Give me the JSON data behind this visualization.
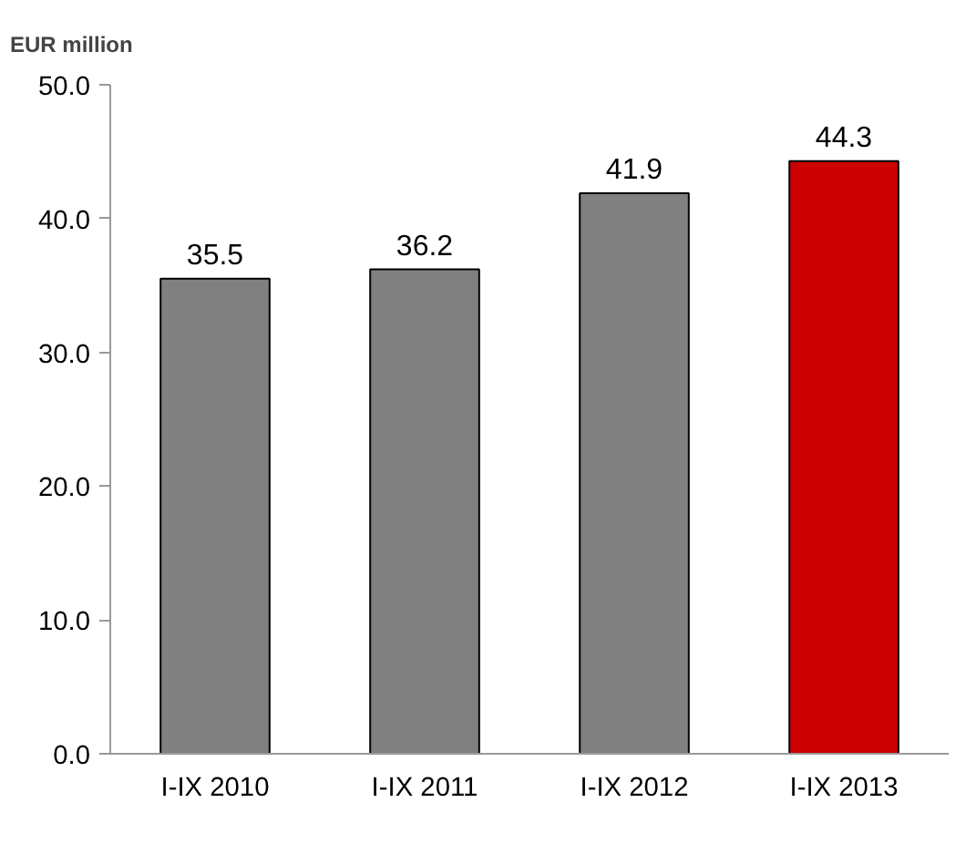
{
  "chart_data": {
    "type": "bar",
    "ylabel": "EUR million",
    "categories": [
      "I-IX 2010",
      "I-IX 2011",
      "I-IX 2012",
      "I-IX 2013"
    ],
    "values": [
      35.5,
      36.2,
      41.9,
      44.3
    ],
    "colors": [
      "#808080",
      "#808080",
      "#808080",
      "#cc0000"
    ],
    "ylim": [
      0,
      50
    ],
    "yticks": [
      {
        "value": 0,
        "label": "0.0"
      },
      {
        "value": 10,
        "label": "10.0"
      },
      {
        "value": 20,
        "label": "20.0"
      },
      {
        "value": 30,
        "label": "30.0"
      },
      {
        "value": 40,
        "label": "40.0"
      },
      {
        "value": 50,
        "label": "50.0"
      }
    ],
    "data_labels": true
  }
}
